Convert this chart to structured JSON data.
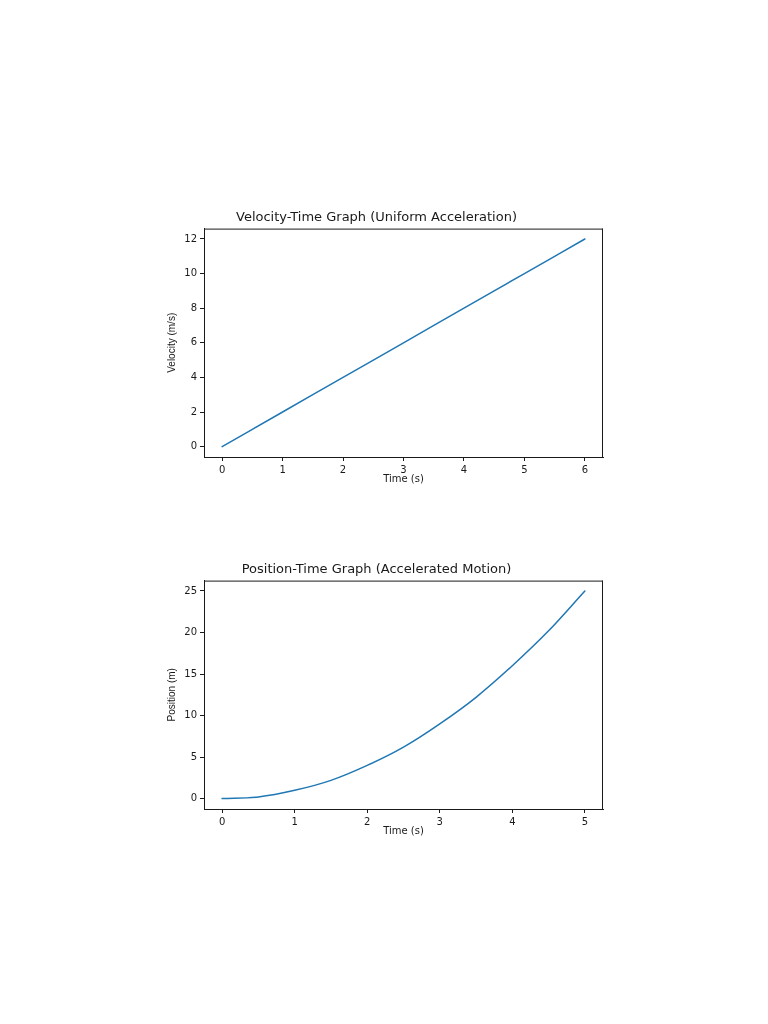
{
  "chart_data": [
    {
      "type": "line",
      "title": "Velocity-Time Graph (Uniform Acceleration)",
      "xlabel": "Time (s)",
      "ylabel": "Velocity (m/s)",
      "x": [
        0,
        1,
        2,
        3,
        4,
        5,
        6
      ],
      "values": [
        0,
        2,
        4,
        6,
        8,
        10,
        12
      ],
      "color": "#1f77b4",
      "xlim": [
        -0.3,
        6.3
      ],
      "xticks": [
        0,
        1,
        2,
        3,
        4,
        5,
        6
      ],
      "ylim": [
        -0.6,
        12.6
      ],
      "yticks": [
        0,
        2,
        4,
        6,
        8,
        10,
        12
      ],
      "grid": false
    },
    {
      "type": "line",
      "title": "Position-Time Graph (Accelerated Motion)",
      "xlabel": "Time (s)",
      "ylabel": "Position (m)",
      "x": [
        0,
        0.5,
        1,
        1.5,
        2,
        2.5,
        3,
        3.5,
        4,
        4.5,
        5
      ],
      "values": [
        0,
        0.2,
        1,
        2.2,
        4,
        6.2,
        9,
        12.2,
        16,
        20.2,
        25
      ],
      "color": "#1f77b4",
      "xlim": [
        -0.25,
        5.25
      ],
      "xticks": [
        0,
        1,
        2,
        3,
        4,
        5
      ],
      "ylim": [
        -1.25,
        26.25
      ],
      "yticks": [
        0,
        5,
        10,
        15,
        20,
        25
      ],
      "grid": false
    }
  ]
}
